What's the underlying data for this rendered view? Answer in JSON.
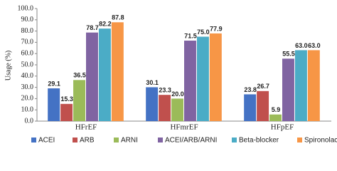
{
  "chart_data": {
    "type": "bar",
    "y_label": "Usage (%)",
    "categories": [
      "HFrEF",
      "HFmrEF",
      "HFpEF"
    ],
    "series": [
      {
        "name": "ACEI",
        "color": "#4472c4",
        "values": [
          29.1,
          30.1,
          23.8
        ],
        "value_labels": [
          "29.1",
          "30.1",
          "23.8"
        ]
      },
      {
        "name": "ARB",
        "color": "#c0504d",
        "values": [
          15.3,
          23.3,
          26.7
        ],
        "value_labels": [
          "15.3",
          "23.3",
          "26.7"
        ]
      },
      {
        "name": "ARNI",
        "color": "#9bbb59",
        "values": [
          36.5,
          20.0,
          5.9
        ],
        "value_labels": [
          "36.5",
          "20.0",
          "5.9"
        ]
      },
      {
        "name": "ACEI/ARB/ARNI",
        "color": "#8064a2",
        "values": [
          78.7,
          71.5,
          55.5
        ],
        "value_labels": [
          "78.7",
          "71.5",
          "55.5"
        ]
      },
      {
        "name": "Beta-blocker",
        "color": "#4bacc6",
        "values": [
          82.2,
          75.0,
          63.0
        ],
        "value_labels": [
          "82.2",
          "75.0",
          "63.0"
        ]
      },
      {
        "name": "Spironolactone",
        "color": "#f79646",
        "values": [
          87.8,
          77.9,
          63.0
        ],
        "value_labels": [
          "87.8",
          "77.9",
          "63.0"
        ]
      }
    ],
    "ylim": [
      0,
      100
    ],
    "yticks": [
      {
        "value": 0,
        "label": "0.0"
      },
      {
        "value": 10,
        "label": "10.0"
      },
      {
        "value": 20,
        "label": "20.0"
      },
      {
        "value": 30,
        "label": "30.0"
      },
      {
        "value": 40,
        "label": "40.0"
      },
      {
        "value": 50,
        "label": "50.0"
      },
      {
        "value": 60,
        "label": "60.0"
      },
      {
        "value": 70,
        "label": "70.0"
      },
      {
        "value": 80,
        "label": "80.0"
      },
      {
        "value": 90,
        "label": "90.0"
      },
      {
        "value": 100,
        "label": "100.0"
      }
    ],
    "grid": false,
    "legend": "bottom"
  }
}
